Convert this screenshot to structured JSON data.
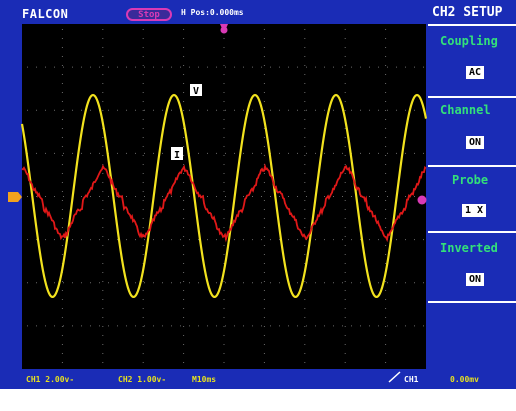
{
  "header": {
    "brand": "FALCON",
    "run_state": "Stop",
    "h_position": "H Pos:0.000ms",
    "menu_title": "CH2 SETUP"
  },
  "menu": {
    "items": [
      {
        "label": "Coupling",
        "value": "AC"
      },
      {
        "label": "Channel",
        "value": "ON"
      },
      {
        "label": "Probe",
        "value": "1 X"
      },
      {
        "label": "Inverted",
        "value": "ON"
      }
    ]
  },
  "traces": {
    "voltage_label": "V",
    "current_label": "I",
    "voltage_color": "#f2e21e",
    "current_color": "#e01818"
  },
  "status": {
    "ch1_scale": "CH1 2.00v-",
    "ch2_scale": "CH2 1.00v-",
    "timebase": "M10ms",
    "trigger_source": "CH1",
    "trigger_level": "0.00mv"
  },
  "colors": {
    "background": "#1a2cb6",
    "graticule": "#000000",
    "menu_label": "#33e07a",
    "trigger_marker": "#d93ab5",
    "ground_marker": "#f2a21e"
  }
}
